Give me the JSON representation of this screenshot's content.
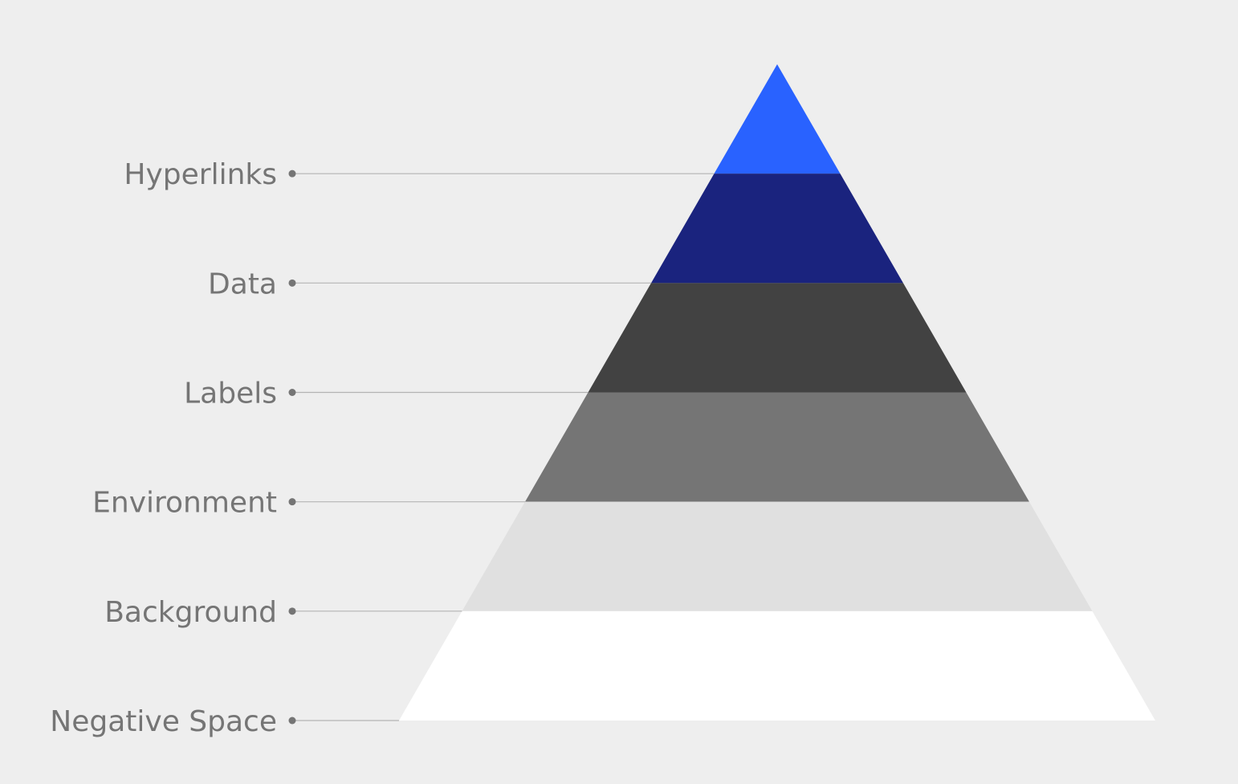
{
  "diagram": {
    "type": "pyramid",
    "background_color": "#eeeeee",
    "label_color": "#757575",
    "connector_color": "#b4b4b4",
    "levels": [
      {
        "label": "Hyperlinks",
        "color": "#2962ff"
      },
      {
        "label": "Data",
        "color": "#1a237e"
      },
      {
        "label": "Labels",
        "color": "#424242"
      },
      {
        "label": "Environment",
        "color": "#757575"
      },
      {
        "label": "Background",
        "color": "#e0e0e0"
      },
      {
        "label": "Negative Space",
        "color": "#ffffff"
      }
    ]
  }
}
